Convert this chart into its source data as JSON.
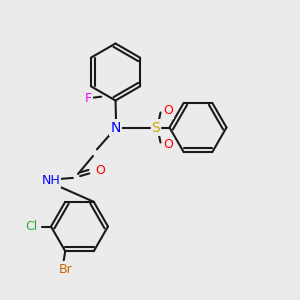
{
  "background_color": "#ebebeb",
  "bond_color": "#1a1a1a",
  "bond_width": 1.5,
  "atom_colors": {
    "N": "#0000ff",
    "O": "#ff0000",
    "S": "#ccaa00",
    "F": "#ff00ff",
    "Cl": "#33aa33",
    "Br": "#cc6600",
    "H": "#555555",
    "C": "#1a1a1a"
  },
  "font_size": 9,
  "label_font_size": 9
}
